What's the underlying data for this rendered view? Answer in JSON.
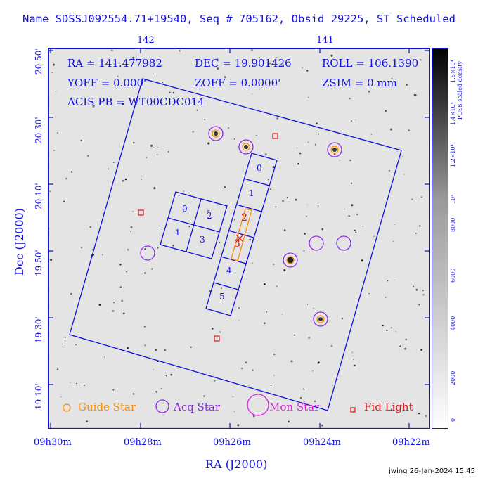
{
  "header": {
    "title": "Name SDSSJ092554.71+19540, Seq # 705162, Obsid 29225, ST Scheduled"
  },
  "info": {
    "ra": "RA = 141.477982",
    "dec": "DEC = 19.901426",
    "roll": "ROLL = 106.1390",
    "yoff": "YOFF = 0.000'",
    "zoff": "ZOFF = 0.0000'",
    "zsim": "ZSIM = 0 mm",
    "acis": "ACIS PB = WT00CDC014"
  },
  "axes": {
    "xlabel": "RA (J2000)",
    "ylabel": "Dec (J2000)",
    "x_ticks": [
      "09h30m",
      "09h28m",
      "09h26m",
      "09h24m",
      "09h22m"
    ],
    "top_ticks": [
      "142",
      "141"
    ],
    "y_ticks": [
      "20 50'",
      "20 30'",
      "20 10'",
      "19 50'",
      "19 30'",
      "19 10'"
    ]
  },
  "colorbar": {
    "label": "POSS scaled density",
    "ticks": [
      "0",
      "2000",
      "4000",
      "6000",
      "8000",
      "10⁴",
      "1.2×10⁴",
      "1.4×10⁴",
      "1.6×10⁴"
    ]
  },
  "ccds": {
    "i_array": [
      "0",
      "1",
      "2",
      "3"
    ],
    "s_array": [
      "0",
      "1",
      "2",
      "3",
      "4",
      "5"
    ]
  },
  "legend": {
    "guide": "Guide Star",
    "acq": "Acq Star",
    "mon": "Mon Star",
    "fid": "Fid Light",
    "colors": {
      "guide": "#ff8c00",
      "acq": "#8a2be2",
      "mon": "#e020e0",
      "fid": "#e01010"
    }
  },
  "footer": {
    "stamp": "jwing 26-Jan-2024 15:45"
  }
}
